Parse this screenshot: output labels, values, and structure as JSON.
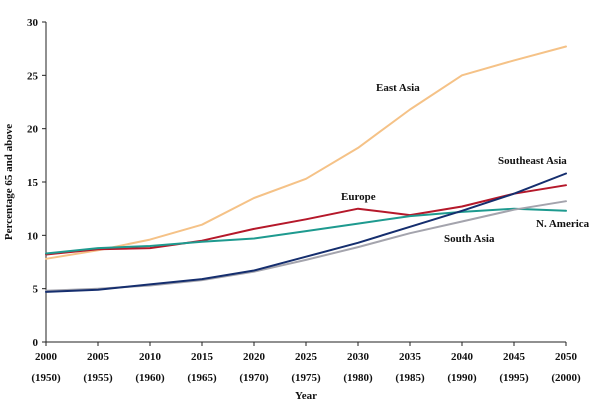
{
  "chart_data": {
    "type": "line",
    "title": "",
    "xlabel": "Year",
    "ylabel": "Percentage 65 and above",
    "ylim": [
      0,
      30
    ],
    "yticks": [
      0,
      5,
      10,
      15,
      20,
      25,
      30
    ],
    "grid": false,
    "categories": [
      "2000",
      "2005",
      "2010",
      "2015",
      "2020",
      "2025",
      "2030",
      "2035",
      "2040",
      "2045",
      "2050"
    ],
    "secondary_categories": [
      "(1950)",
      "(1955)",
      "(1960)",
      "(1965)",
      "(1970)",
      "(1975)",
      "(1980)",
      "(1985)",
      "(1990)",
      "(1995)",
      "(2000)"
    ],
    "series": [
      {
        "name": "East Asia",
        "color": "#f5c287",
        "values": [
          7.8,
          8.6,
          9.6,
          11.0,
          13.5,
          15.3,
          18.2,
          21.8,
          25.0,
          26.4,
          27.7
        ]
      },
      {
        "name": "Europe",
        "color": "#b5182a",
        "values": [
          8.2,
          8.7,
          8.8,
          9.5,
          10.6,
          11.5,
          12.5,
          11.9,
          12.7,
          13.9,
          14.7
        ]
      },
      {
        "name": "N. America",
        "color": "#1e9a8f",
        "values": [
          8.3,
          8.8,
          9.0,
          9.4,
          9.7,
          10.4,
          11.1,
          11.8,
          12.2,
          12.5,
          12.3
        ]
      },
      {
        "name": "South Asia",
        "color": "#a4a4ad",
        "values": [
          4.8,
          5.0,
          5.3,
          5.8,
          6.6,
          7.7,
          8.9,
          10.2,
          11.3,
          12.4,
          13.2
        ]
      },
      {
        "name": "Southeast Asia",
        "color": "#152e6e",
        "values": [
          4.7,
          4.9,
          5.4,
          5.9,
          6.7,
          8.0,
          9.3,
          10.8,
          12.3,
          13.9,
          15.8
        ]
      }
    ]
  }
}
